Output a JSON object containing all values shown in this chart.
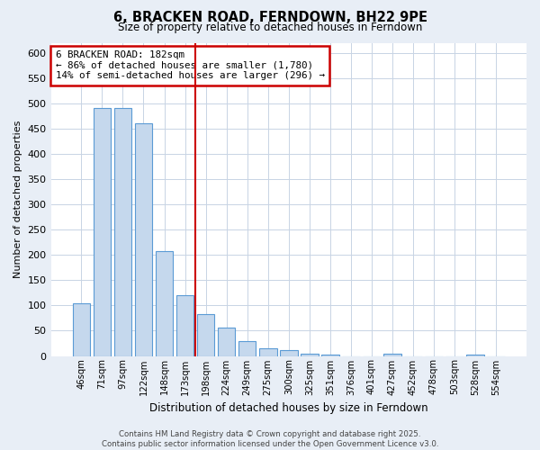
{
  "title": "6, BRACKEN ROAD, FERNDOWN, BH22 9PE",
  "subtitle": "Size of property relative to detached houses in Ferndown",
  "xlabel": "Distribution of detached houses by size in Ferndown",
  "ylabel": "Number of detached properties",
  "categories": [
    "46sqm",
    "71sqm",
    "97sqm",
    "122sqm",
    "148sqm",
    "173sqm",
    "198sqm",
    "224sqm",
    "249sqm",
    "275sqm",
    "300sqm",
    "325sqm",
    "351sqm",
    "376sqm",
    "401sqm",
    "427sqm",
    "452sqm",
    "478sqm",
    "503sqm",
    "528sqm",
    "554sqm"
  ],
  "values": [
    105,
    490,
    490,
    460,
    208,
    120,
    82,
    57,
    30,
    15,
    12,
    5,
    2,
    0,
    0,
    5,
    0,
    0,
    0,
    2,
    0
  ],
  "bar_color": "#c5d8ed",
  "bar_edge_color": "#5b9bd5",
  "vline_x_index": 5.5,
  "vline_color": "#cc0000",
  "annotation_text": "6 BRACKEN ROAD: 182sqm\n← 86% of detached houses are smaller (1,780)\n14% of semi-detached houses are larger (296) →",
  "annotation_box_color": "#cc0000",
  "annotation_text_color": "#000000",
  "ylim": [
    0,
    620
  ],
  "yticks": [
    0,
    50,
    100,
    150,
    200,
    250,
    300,
    350,
    400,
    450,
    500,
    550,
    600
  ],
  "footer": "Contains HM Land Registry data © Crown copyright and database right 2025.\nContains public sector information licensed under the Open Government Licence v3.0.",
  "background_color": "#e8eef6",
  "plot_background_color": "#ffffff",
  "grid_color": "#c8d4e4"
}
